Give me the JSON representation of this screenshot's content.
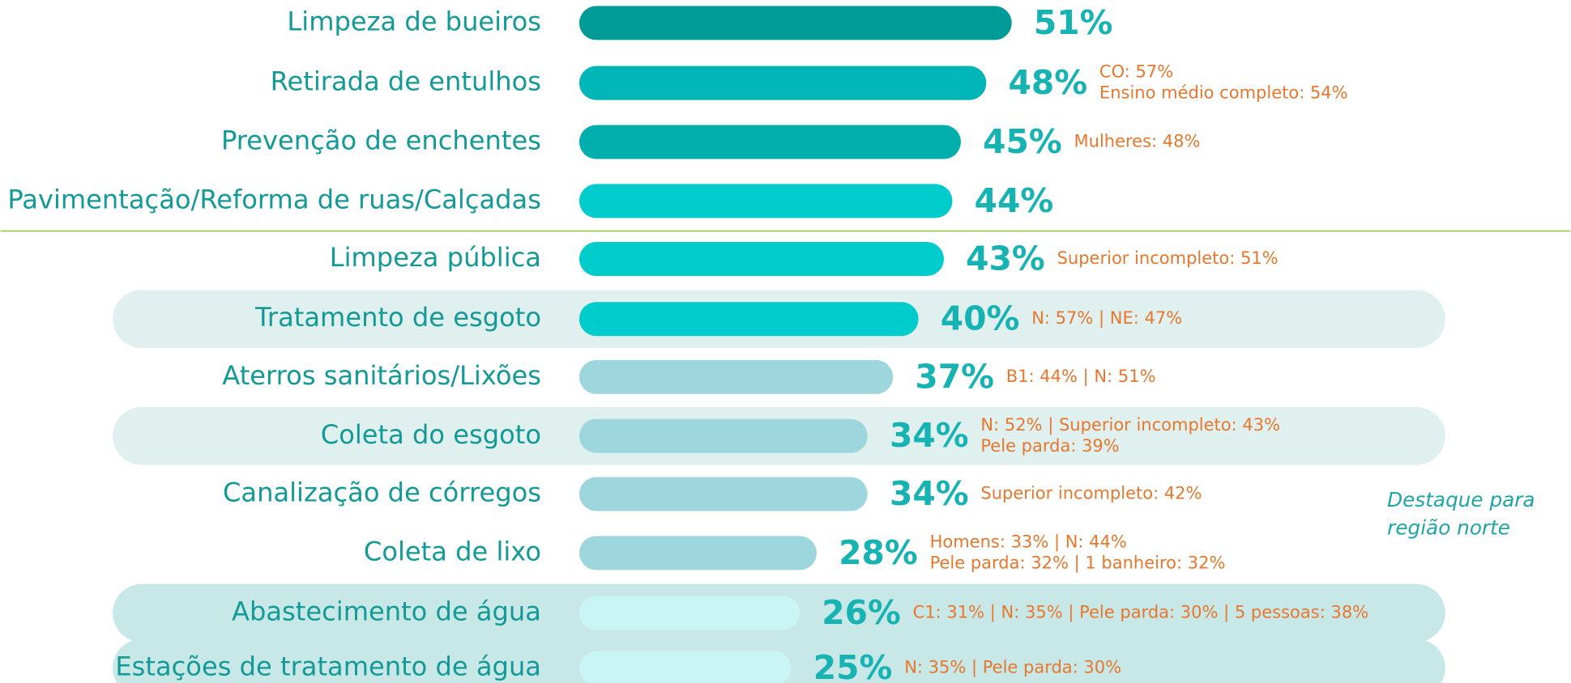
{
  "chart_data": {
    "type": "bar",
    "categories": [
      "Limpeza de bueiros",
      "Retirada de entulhos",
      "Prevenção de enchentes",
      "Pavimentação/Reforma de ruas/Calçadas",
      "Limpeza pública",
      "Tratamento de esgoto",
      "Aterros sanitários/Lixões",
      "Coleta do esgoto",
      "Canalização de córregos",
      "Coleta de lixo",
      "Abastecimento de água",
      "Estações de tratamento de água"
    ],
    "values": [
      51,
      48,
      45,
      44,
      43,
      40,
      37,
      34,
      34,
      28,
      26,
      25
    ],
    "value_labels": [
      "51%",
      "48%",
      "45%",
      "44%",
      "43%",
      "40%",
      "37%",
      "34%",
      "34%",
      "28%",
      "26%",
      "25%"
    ],
    "colors": [
      "#009b96",
      "#00b6b6",
      "#00aeac",
      "#00cccc",
      "#00cccc",
      "#00cccc",
      "#9dd6dc",
      "#9dd6dc",
      "#9dd6dc",
      "#9dd6dc",
      "#c9f5f4",
      "#c9f5f4"
    ],
    "row_backgrounds": [
      null,
      null,
      null,
      null,
      null,
      "#dff0ef",
      null,
      "#dff0ef",
      null,
      null,
      "#c7e8e7",
      "#c7e8e7"
    ],
    "annotations": [
      [],
      [
        "CO: 57%",
        "Ensino médio completo: 54%"
      ],
      [
        "Mulheres: 48%"
      ],
      [],
      [
        "Superior incompleto: 51%"
      ],
      [
        "N: 57% | NE: 47%"
      ],
      [
        "B1: 44% | N: 51%"
      ],
      [
        "N: 52% | Superior incompleto: 43%",
        "Pele parda: 39%"
      ],
      [
        "Superior incompleto: 42%"
      ],
      [
        "Homens: 33% | N: 44%",
        "Pele parda: 32% | 1 banheiro: 32%"
      ],
      [
        "C1: 31% | N: 35% | Pele parda: 30% | 5 pessoas: 38%"
      ],
      [
        "N: 35% | Pele parda: 30%"
      ]
    ],
    "note": [
      "Destaque para",
      "região norte"
    ],
    "xlim": [
      0,
      100
    ]
  }
}
